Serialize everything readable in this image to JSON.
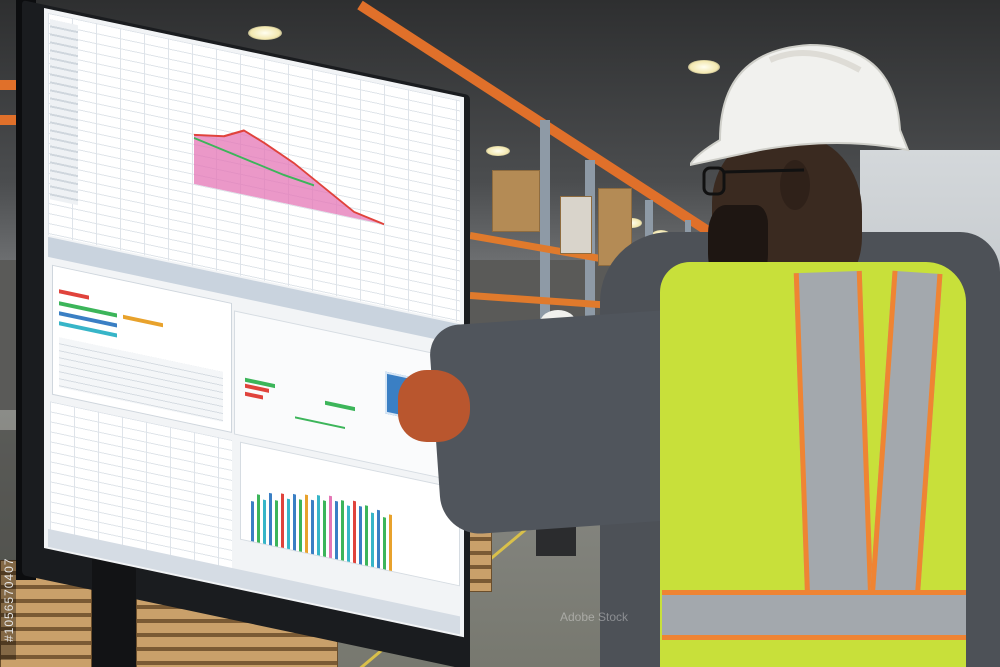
{
  "image": {
    "watermark_id": "#1056570407",
    "watermark_text": "Adobe Stock"
  },
  "colors": {
    "vest": "#c8e03a",
    "vest_trim": "#ef8433",
    "reflective_strip": "#a3a8ad",
    "helmet": "#f1f1ee",
    "shirt": "#4d5157",
    "rack_orange": "#e0702a",
    "screen_accent_blue": "#3a7fc4",
    "chart_pink": "#e476b5",
    "chart_red": "#e0433c",
    "chart_green": "#3cb55a"
  },
  "icons": {
    "helmet": "hard-hat-icon",
    "glasses": "glasses-icon"
  }
}
